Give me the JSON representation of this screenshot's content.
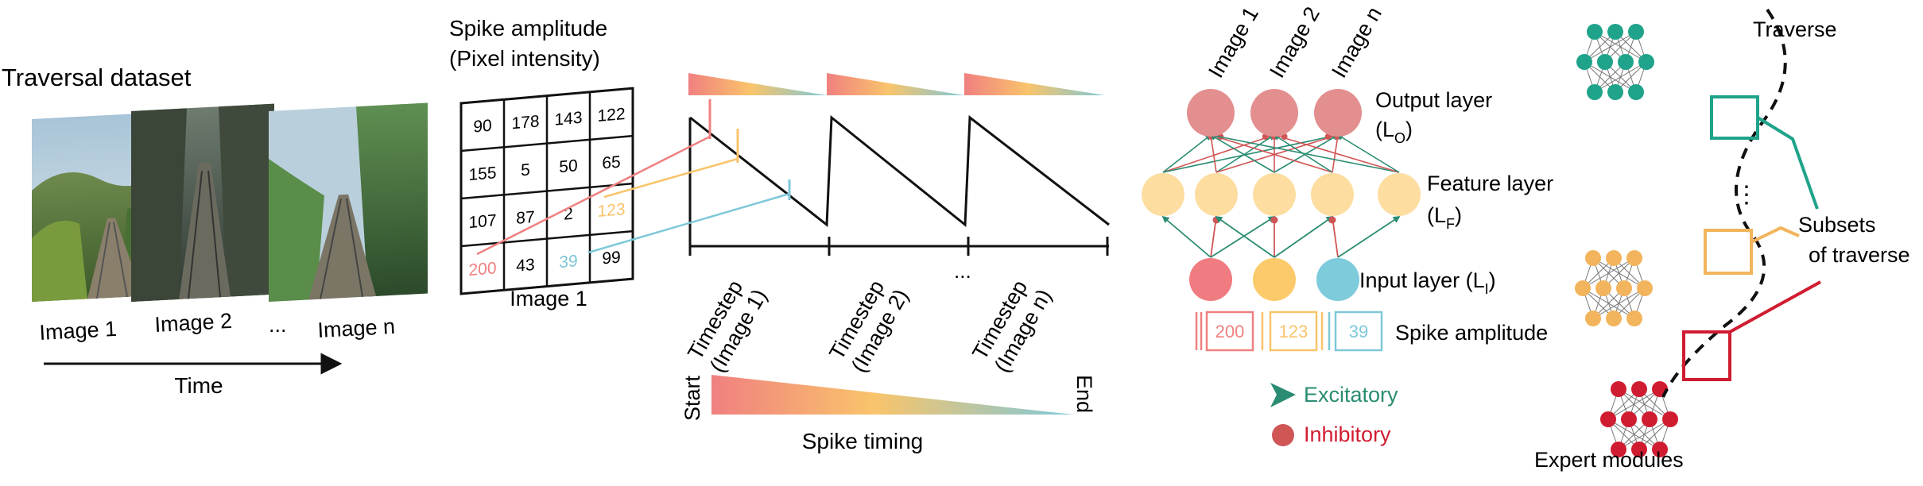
{
  "panel_dataset": {
    "title": "Traversal dataset",
    "labels": [
      "Image 1",
      "Image 2",
      "...",
      "Image n"
    ],
    "time_label": "Time"
  },
  "panel_encoding": {
    "title_line1": "Spike amplitude",
    "title_line2": "(Pixel intensity)",
    "grid_values": [
      [
        "90",
        "178",
        "143",
        "122"
      ],
      [
        "155",
        "5",
        "50",
        "65"
      ],
      [
        "107",
        "87",
        "2",
        "123"
      ],
      [
        "200",
        "43",
        "39",
        "99"
      ]
    ],
    "grid_caption": "Image 1",
    "timesteps": [
      {
        "line1": "Timestep",
        "line2": "(Image 1)"
      },
      {
        "line1": "Timestep",
        "line2": "(Image 2)"
      },
      {
        "line1": "Timestep",
        "line2": "(Image n)"
      }
    ],
    "ellipsis": "...",
    "timing_start": "Start",
    "timing_end": "End",
    "timing_label": "Spike timing"
  },
  "panel_network": {
    "image_labels": [
      "Image 1",
      "Image 2",
      "Image n"
    ],
    "output_layer": {
      "label": "Output layer",
      "sym": "(L",
      "sub": "O",
      "close": ")"
    },
    "feature_layer": {
      "label": "Feature layer",
      "sym": "(L",
      "sub": "F",
      "close": ")"
    },
    "input_layer": {
      "label": "Input layer (L",
      "sub": "I",
      "close": ")"
    },
    "spike_values": [
      "200",
      "123",
      "39"
    ],
    "spike_label": "Spike amplitude",
    "legend_excitatory": "Excitatory",
    "legend_inhibitory": "Inhibitory"
  },
  "panel_experts": {
    "traverse_label": "Traverse",
    "subsets_line1": "Subsets",
    "subsets_line2": "of traverse",
    "dots": "⋮",
    "expert_label": "Expert modules"
  },
  "colors": {
    "red": "#f08080",
    "yellow": "#f9c46b",
    "blue": "#7ec8d8",
    "green": "#2a8c72",
    "teal_node": "#1fa38a",
    "orange_node": "#f2b45c",
    "crimson_node": "#d01c30",
    "output_node": "#e38f8f",
    "feature_node": "#fddda0",
    "input_red": "#f07b80",
    "input_yellow": "#fcca6a",
    "input_blue": "#7ecbdc",
    "inhibitory": "#d05555"
  }
}
